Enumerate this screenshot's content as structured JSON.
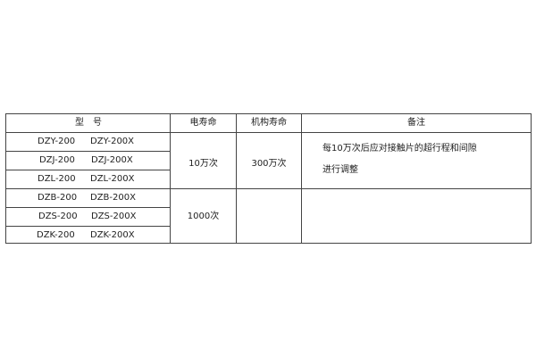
{
  "table": {
    "headers": [
      "型　号",
      "电寿命",
      "机构寿命",
      "备注"
    ],
    "rows": [
      {
        "model": "DZY-200",
        "model_x": "DZY-200X"
      },
      {
        "model": "DZJ-200",
        "model_x": "DZJ-200X"
      },
      {
        "model": "DZL-200",
        "model_x": "DZL-200X"
      },
      {
        "model": "DZB-200",
        "model_x": "DZB-200X"
      },
      {
        "model": "DZS-200",
        "model_x": "DZS-200X"
      },
      {
        "model": "DZK-200",
        "model_x": "DZK-200X"
      }
    ],
    "groups": [
      {
        "electrical_life": "10万次",
        "mechanical_life": "300万次",
        "remark_line1": "每10万次后应对接触片的超行程和间隙",
        "remark_line2": "进行调整"
      },
      {
        "electrical_life": "1000次",
        "mechanical_life": "",
        "remark_line1": "",
        "remark_line2": ""
      }
    ]
  }
}
